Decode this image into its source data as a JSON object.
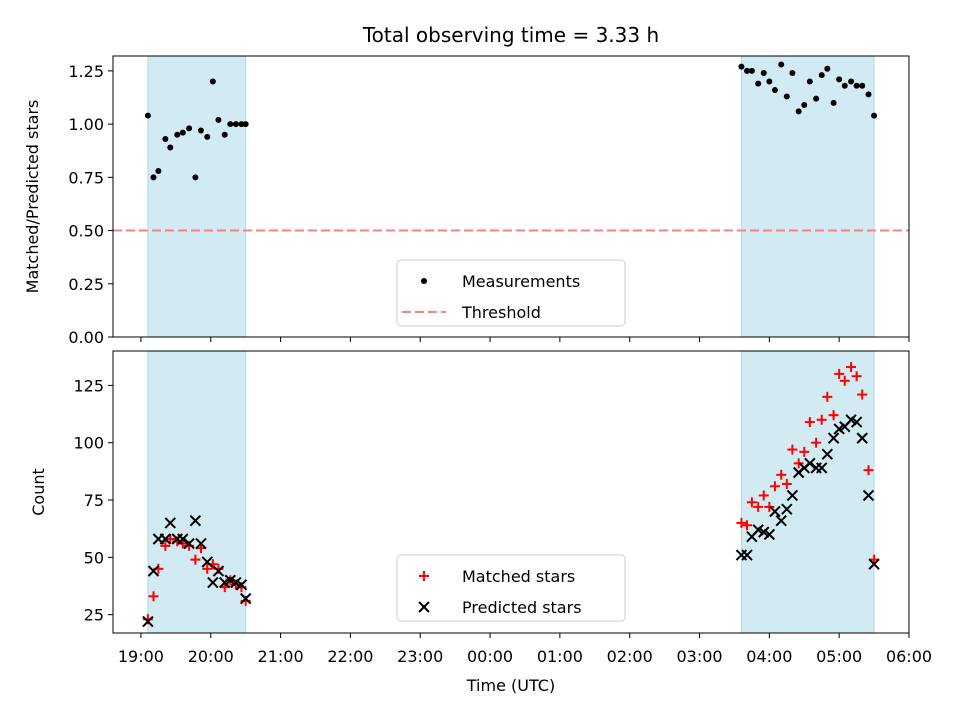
{
  "figure": {
    "title": "Total observing time = 3.33 h"
  },
  "chart_data": [
    {
      "type": "scatter",
      "ylabel": "Matched/Predicted stars",
      "ylim": [
        0,
        1.32
      ],
      "yticks": [
        0.0,
        0.25,
        0.5,
        0.75,
        1.0,
        1.25
      ],
      "ytick_labels": [
        "0.00",
        "0.25",
        "0.50",
        "0.75",
        "1.00",
        "1.25"
      ],
      "xlim_hours": [
        18.6,
        30.0
      ],
      "shaded_intervals_hours": [
        [
          19.1,
          20.5
        ],
        [
          27.6,
          29.5
        ]
      ],
      "shade_color": "#add8e6",
      "threshold": {
        "value": 0.5,
        "color": "#ff7f7f"
      },
      "legend": {
        "position": "lower center",
        "entries": [
          "Measurements",
          "Threshold"
        ]
      },
      "series": [
        {
          "name": "Measurements",
          "color": "#000000",
          "marker": "dot",
          "points": [
            [
              19.1,
              1.04
            ],
            [
              19.18,
              0.75
            ],
            [
              19.25,
              0.78
            ],
            [
              19.35,
              0.93
            ],
            [
              19.42,
              0.89
            ],
            [
              19.52,
              0.95
            ],
            [
              19.6,
              0.96
            ],
            [
              19.69,
              0.98
            ],
            [
              19.78,
              0.75
            ],
            [
              19.86,
              0.97
            ],
            [
              19.95,
              0.94
            ],
            [
              20.03,
              1.2
            ],
            [
              20.11,
              1.02
            ],
            [
              20.2,
              0.95
            ],
            [
              20.28,
              1.0
            ],
            [
              20.36,
              1.0
            ],
            [
              20.44,
              1.0
            ],
            [
              20.5,
              1.0
            ],
            [
              27.6,
              1.27
            ],
            [
              27.68,
              1.25
            ],
            [
              27.75,
              1.25
            ],
            [
              27.84,
              1.19
            ],
            [
              27.92,
              1.24
            ],
            [
              28.0,
              1.2
            ],
            [
              28.08,
              1.16
            ],
            [
              28.17,
              1.28
            ],
            [
              28.25,
              1.13
            ],
            [
              28.33,
              1.24
            ],
            [
              28.42,
              1.06
            ],
            [
              28.5,
              1.09
            ],
            [
              28.58,
              1.2
            ],
            [
              28.67,
              1.12
            ],
            [
              28.75,
              1.23
            ],
            [
              28.83,
              1.26
            ],
            [
              28.92,
              1.1
            ],
            [
              29.0,
              1.21
            ],
            [
              29.08,
              1.18
            ],
            [
              29.17,
              1.2
            ],
            [
              29.25,
              1.18
            ],
            [
              29.33,
              1.18
            ],
            [
              29.42,
              1.14
            ],
            [
              29.5,
              1.04
            ]
          ]
        }
      ]
    },
    {
      "type": "scatter",
      "ylabel": "Count",
      "xlabel": "Time (UTC)",
      "ylim": [
        17,
        140
      ],
      "yticks": [
        25,
        50,
        75,
        100,
        125
      ],
      "xlim_hours": [
        18.6,
        30.0
      ],
      "xticks_hours": [
        19,
        20,
        21,
        22,
        23,
        24,
        25,
        26,
        27,
        28,
        29,
        30
      ],
      "xtick_labels": [
        "19:00",
        "20:00",
        "21:00",
        "22:00",
        "23:00",
        "00:00",
        "01:00",
        "02:00",
        "03:00",
        "04:00",
        "05:00",
        "06:00"
      ],
      "shaded_intervals_hours": [
        [
          19.1,
          20.5
        ],
        [
          27.6,
          29.5
        ]
      ],
      "shade_color": "#add8e6",
      "legend": {
        "position": "lower center",
        "entries": [
          "Matched stars",
          "Predicted stars"
        ]
      },
      "series": [
        {
          "name": "Matched stars",
          "color": "#ff0000",
          "marker": "plus",
          "points": [
            [
              19.1,
              23
            ],
            [
              19.18,
              33
            ],
            [
              19.25,
              45
            ],
            [
              19.35,
              55
            ],
            [
              19.42,
              58
            ],
            [
              19.52,
              57
            ],
            [
              19.6,
              56
            ],
            [
              19.69,
              55
            ],
            [
              19.78,
              49
            ],
            [
              19.86,
              54
            ],
            [
              19.95,
              45
            ],
            [
              20.03,
              47
            ],
            [
              20.11,
              45
            ],
            [
              20.2,
              37
            ],
            [
              20.28,
              40
            ],
            [
              20.36,
              38
            ],
            [
              20.44,
              37
            ],
            [
              20.5,
              31
            ],
            [
              27.6,
              65
            ],
            [
              27.68,
              64
            ],
            [
              27.75,
              74
            ],
            [
              27.84,
              72
            ],
            [
              27.92,
              77
            ],
            [
              28.0,
              72
            ],
            [
              28.08,
              81
            ],
            [
              28.17,
              86
            ],
            [
              28.25,
              82
            ],
            [
              28.33,
              97
            ],
            [
              28.42,
              91
            ],
            [
              28.5,
              96
            ],
            [
              28.58,
              109
            ],
            [
              28.67,
              100
            ],
            [
              28.75,
              110
            ],
            [
              28.83,
              120
            ],
            [
              28.92,
              112
            ],
            [
              29.0,
              130
            ],
            [
              29.08,
              127
            ],
            [
              29.17,
              133
            ],
            [
              29.25,
              129
            ],
            [
              29.33,
              121
            ],
            [
              29.42,
              88
            ],
            [
              29.5,
              49
            ]
          ]
        },
        {
          "name": "Predicted stars",
          "color": "#000000",
          "marker": "x",
          "points": [
            [
              19.1,
              22
            ],
            [
              19.18,
              44
            ],
            [
              19.25,
              58
            ],
            [
              19.35,
              58
            ],
            [
              19.42,
              65
            ],
            [
              19.52,
              58
            ],
            [
              19.6,
              58
            ],
            [
              19.69,
              56
            ],
            [
              19.78,
              66
            ],
            [
              19.86,
              56
            ],
            [
              19.95,
              48
            ],
            [
              20.03,
              39
            ],
            [
              20.11,
              44
            ],
            [
              20.2,
              39
            ],
            [
              20.28,
              40
            ],
            [
              20.36,
              39
            ],
            [
              20.44,
              38
            ],
            [
              20.5,
              32
            ],
            [
              27.6,
              51
            ],
            [
              27.68,
              51
            ],
            [
              27.75,
              59
            ],
            [
              27.84,
              62
            ],
            [
              27.92,
              61
            ],
            [
              28.0,
              60
            ],
            [
              28.08,
              70
            ],
            [
              28.17,
              66
            ],
            [
              28.25,
              71
            ],
            [
              28.33,
              77
            ],
            [
              28.42,
              87
            ],
            [
              28.5,
              89
            ],
            [
              28.58,
              91
            ],
            [
              28.67,
              89
            ],
            [
              28.75,
              89
            ],
            [
              28.83,
              95
            ],
            [
              28.92,
              102
            ],
            [
              29.0,
              106
            ],
            [
              29.08,
              107
            ],
            [
              29.17,
              110
            ],
            [
              29.25,
              109
            ],
            [
              29.33,
              102
            ],
            [
              29.42,
              77
            ],
            [
              29.5,
              47
            ]
          ]
        }
      ]
    }
  ]
}
